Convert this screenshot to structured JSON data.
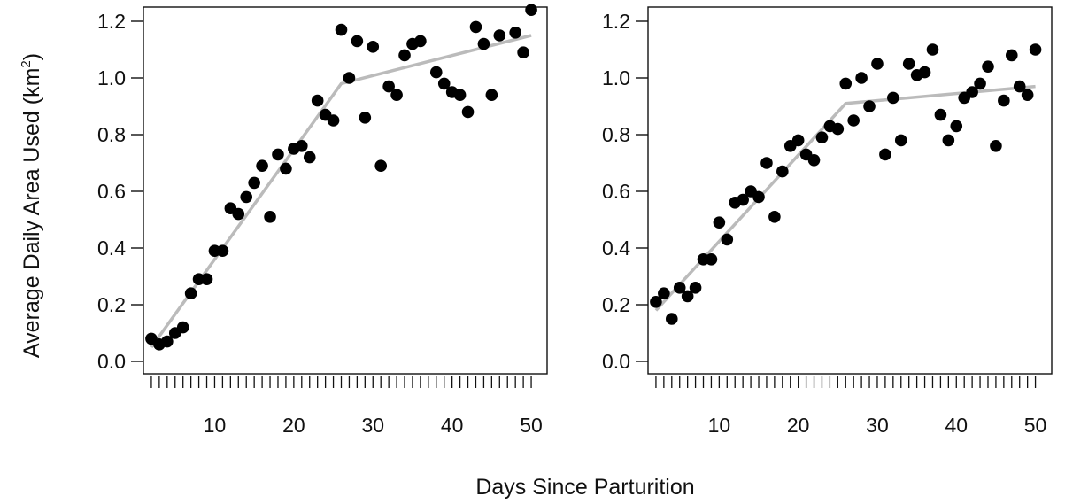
{
  "figure": {
    "ylabel_main": "Average Daily Area Used (km",
    "ylabel_sup": "2",
    "ylabel_tail": ")",
    "xlabel": "Days Since Parturition"
  },
  "chart_data": [
    {
      "type": "scatter",
      "panel": "left",
      "title": "",
      "xlabel": "Days Since Parturition",
      "ylabel": "Average Daily Area Used (km²)",
      "xlim": [
        1,
        50
      ],
      "ylim": [
        0,
        1.2
      ],
      "xticks": [
        10,
        20,
        30,
        40,
        50
      ],
      "yticks": [
        0.0,
        0.2,
        0.4,
        0.6,
        0.8,
        1.0,
        1.2
      ],
      "grid": false,
      "legend": false,
      "points": [
        [
          2,
          0.08
        ],
        [
          3,
          0.06
        ],
        [
          4,
          0.07
        ],
        [
          5,
          0.1
        ],
        [
          6,
          0.12
        ],
        [
          7,
          0.24
        ],
        [
          8,
          0.29
        ],
        [
          9,
          0.29
        ],
        [
          10,
          0.39
        ],
        [
          11,
          0.39
        ],
        [
          12,
          0.54
        ],
        [
          13,
          0.52
        ],
        [
          14,
          0.58
        ],
        [
          15,
          0.63
        ],
        [
          16,
          0.69
        ],
        [
          17,
          0.51
        ],
        [
          18,
          0.73
        ],
        [
          19,
          0.68
        ],
        [
          20,
          0.75
        ],
        [
          21,
          0.76
        ],
        [
          22,
          0.72
        ],
        [
          23,
          0.92
        ],
        [
          24,
          0.87
        ],
        [
          25,
          0.85
        ],
        [
          26,
          1.17
        ],
        [
          27,
          1.0
        ],
        [
          28,
          1.13
        ],
        [
          29,
          0.86
        ],
        [
          30,
          1.11
        ],
        [
          31,
          0.69
        ],
        [
          32,
          0.97
        ],
        [
          33,
          0.94
        ],
        [
          34,
          1.08
        ],
        [
          35,
          1.12
        ],
        [
          36,
          1.13
        ],
        [
          38,
          1.02
        ],
        [
          39,
          0.98
        ],
        [
          40,
          0.95
        ],
        [
          41,
          0.94
        ],
        [
          42,
          0.88
        ],
        [
          43,
          1.18
        ],
        [
          44,
          1.12
        ],
        [
          45,
          0.94
        ],
        [
          46,
          1.15
        ],
        [
          48,
          1.16
        ],
        [
          49,
          1.09
        ],
        [
          50,
          1.24
        ]
      ],
      "fit_line": [
        [
          2,
          0.05
        ],
        [
          26,
          0.98
        ],
        [
          50,
          1.15
        ]
      ]
    },
    {
      "type": "scatter",
      "panel": "right",
      "title": "",
      "xlabel": "Days Since Parturition",
      "ylabel": "",
      "xlim": [
        1,
        50
      ],
      "ylim": [
        0,
        1.2
      ],
      "xticks": [
        10,
        20,
        30,
        40,
        50
      ],
      "yticks": [
        0.0,
        0.2,
        0.4,
        0.6,
        0.8,
        1.0,
        1.2
      ],
      "grid": false,
      "legend": false,
      "points": [
        [
          2,
          0.21
        ],
        [
          3,
          0.24
        ],
        [
          4,
          0.15
        ],
        [
          5,
          0.26
        ],
        [
          6,
          0.23
        ],
        [
          7,
          0.26
        ],
        [
          8,
          0.36
        ],
        [
          9,
          0.36
        ],
        [
          10,
          0.49
        ],
        [
          11,
          0.43
        ],
        [
          12,
          0.56
        ],
        [
          13,
          0.57
        ],
        [
          14,
          0.6
        ],
        [
          15,
          0.58
        ],
        [
          16,
          0.7
        ],
        [
          17,
          0.51
        ],
        [
          18,
          0.67
        ],
        [
          19,
          0.76
        ],
        [
          20,
          0.78
        ],
        [
          21,
          0.73
        ],
        [
          22,
          0.71
        ],
        [
          23,
          0.79
        ],
        [
          24,
          0.83
        ],
        [
          25,
          0.82
        ],
        [
          26,
          0.98
        ],
        [
          27,
          0.85
        ],
        [
          28,
          1.0
        ],
        [
          29,
          0.9
        ],
        [
          30,
          1.05
        ],
        [
          31,
          0.73
        ],
        [
          32,
          0.93
        ],
        [
          33,
          0.78
        ],
        [
          34,
          1.05
        ],
        [
          35,
          1.01
        ],
        [
          36,
          1.02
        ],
        [
          37,
          1.1
        ],
        [
          38,
          0.87
        ],
        [
          39,
          0.78
        ],
        [
          40,
          0.83
        ],
        [
          41,
          0.93
        ],
        [
          42,
          0.95
        ],
        [
          43,
          0.98
        ],
        [
          44,
          1.04
        ],
        [
          45,
          0.76
        ],
        [
          46,
          0.92
        ],
        [
          47,
          1.08
        ],
        [
          48,
          0.97
        ],
        [
          49,
          0.94
        ],
        [
          50,
          1.1
        ]
      ],
      "fit_line": [
        [
          2,
          0.18
        ],
        [
          26,
          0.91
        ],
        [
          50,
          0.97
        ]
      ]
    }
  ],
  "colors": {
    "points": "#000000",
    "fit_line": "#bbbbbb",
    "axes": "#111111",
    "background": "#ffffff"
  }
}
